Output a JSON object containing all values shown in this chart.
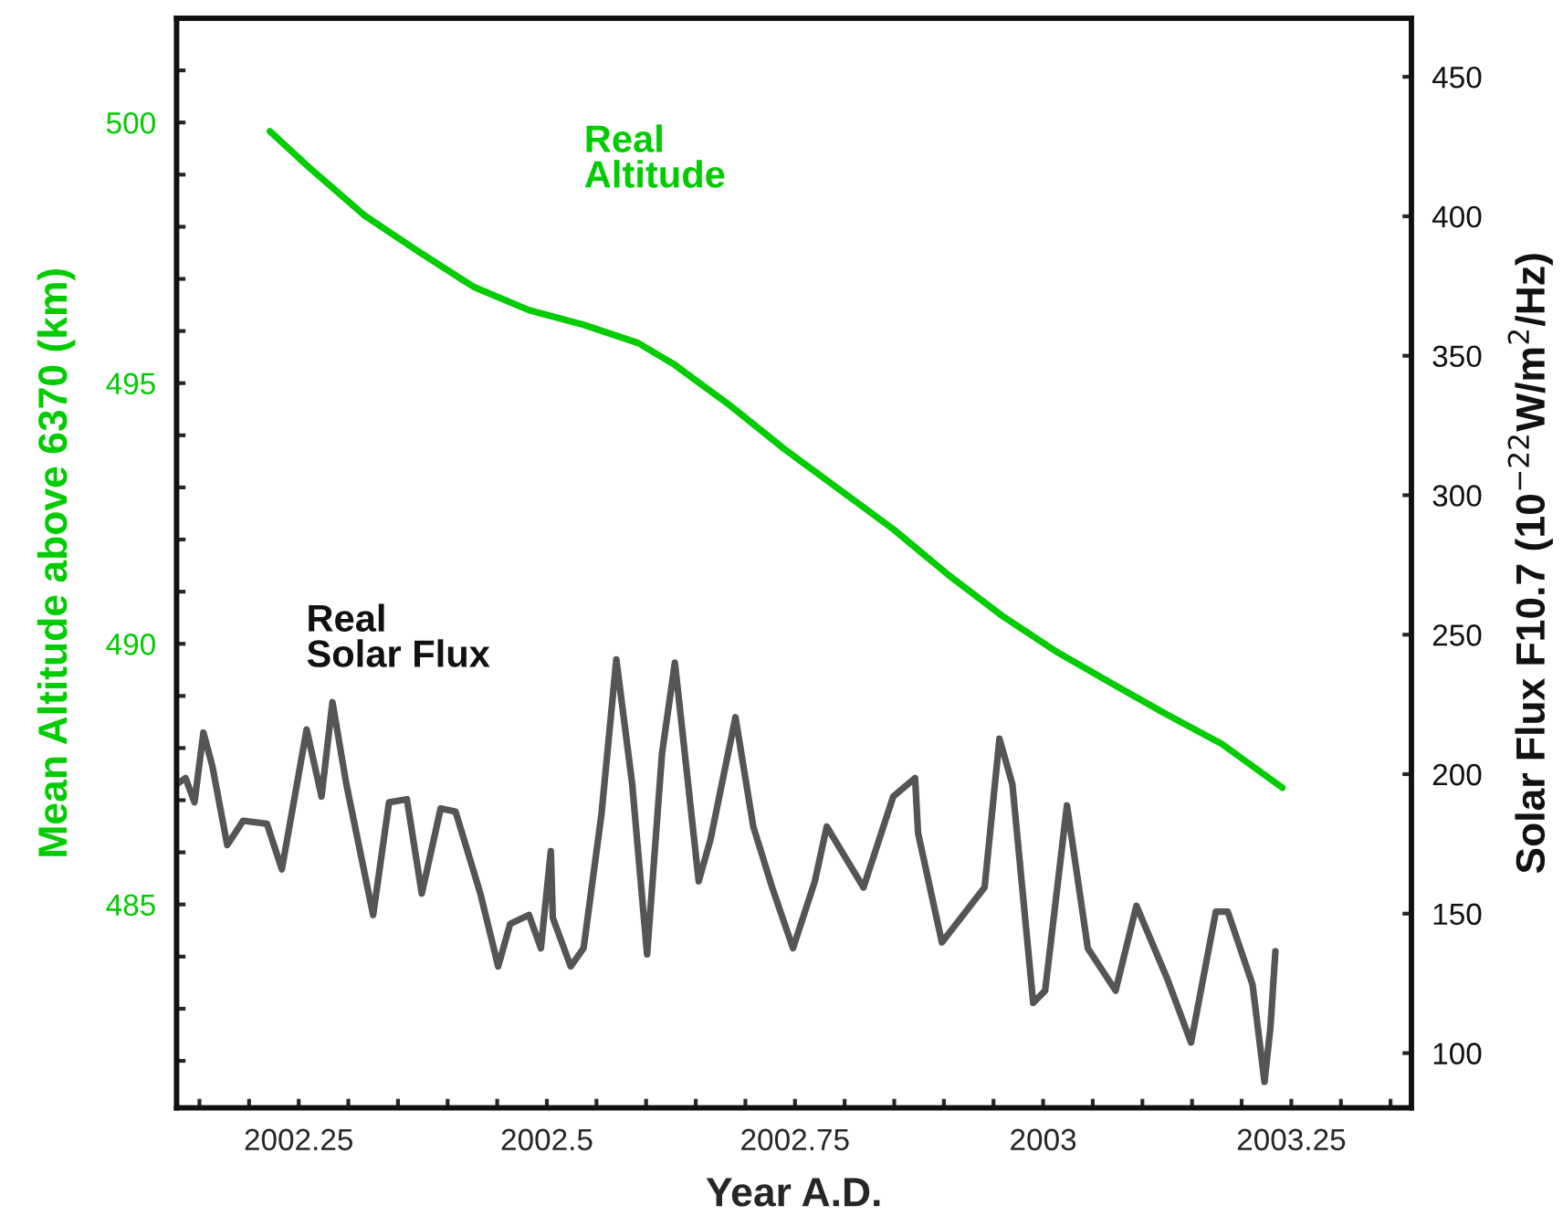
{
  "chart_data": {
    "type": "line",
    "xlabel": "Year A.D.",
    "ylabel": "Mean Altitude above 6370 (km)",
    "y2label": "Solar Flux F10.7 (10$^{−22}$W/m$^{2}$/Hz)",
    "xlim": [
      2002.127,
      2003.371
    ],
    "xticks": [
      {
        "value": 2002.15,
        "label": null
      },
      {
        "value": 2002.2,
        "label": null
      },
      2002.25,
      {
        "value": 2002.3,
        "label": null
      },
      {
        "value": 2002.35,
        "label": null
      },
      {
        "value": 2002.4,
        "label": null
      },
      {
        "value": 2002.45,
        "label": null
      },
      2002.5,
      {
        "value": 2002.55,
        "label": null
      },
      {
        "value": 2002.6,
        "label": null
      },
      {
        "value": 2002.65,
        "label": null
      },
      {
        "value": 2002.7,
        "label": null
      },
      2002.75,
      {
        "value": 2002.8,
        "label": null
      },
      {
        "value": 2002.85,
        "label": null
      },
      {
        "value": 2002.9,
        "label": null
      },
      {
        "value": 2002.95,
        "label": null
      },
      2003,
      {
        "value": 2003.05,
        "label": null
      },
      {
        "value": 2003.1,
        "label": null
      },
      {
        "value": 2003.15,
        "label": null
      },
      {
        "value": 2003.2,
        "label": null
      },
      2003.25,
      {
        "value": 2003.3,
        "label": null
      },
      {
        "value": 2003.35,
        "label": null
      }
    ],
    "ylim": [
      481.1,
      502.0
    ],
    "yticks": [
      {
        "value": 482,
        "label": null
      },
      {
        "value": 483,
        "label": null
      },
      {
        "value": 484,
        "label": null
      },
      485,
      {
        "value": 486,
        "label": null
      },
      {
        "value": 487,
        "label": null
      },
      {
        "value": 488,
        "label": null
      },
      {
        "value": 489,
        "label": null
      },
      490,
      {
        "value": 491,
        "label": null
      },
      {
        "value": 492,
        "label": null
      },
      {
        "value": 493,
        "label": null
      },
      {
        "value": 494,
        "label": null
      },
      495,
      {
        "value": 496,
        "label": null
      },
      {
        "value": 497,
        "label": null
      },
      {
        "value": 498,
        "label": null
      },
      {
        "value": 499,
        "label": null
      },
      500,
      {
        "value": 501,
        "label": null
      }
    ],
    "y2lim": [
      80.4,
      471
    ],
    "y2ticks": [
      100,
      150,
      200,
      250,
      300,
      350,
      400,
      450
    ],
    "grid": false,
    "legend": false,
    "marker": "none",
    "line_style": "solid",
    "series": [
      {
        "name": "Real\nAltitude",
        "color": "#00cc00",
        "x": [
          2002.221,
          2002.261,
          2002.316,
          2002.371,
          2002.426,
          2002.482,
          2002.537,
          2002.592,
          2002.629,
          2002.684,
          2002.739,
          2002.794,
          2002.849,
          2002.904,
          2002.96,
          2003.015,
          2003.07,
          2003.125,
          2003.18,
          2003.241
        ],
        "values": [
          499.83,
          499.13,
          498.22,
          497.52,
          496.85,
          496.4,
          496.12,
          495.77,
          495.35,
          494.58,
          493.74,
          492.97,
          492.2,
          491.33,
          490.52,
          489.83,
          489.23,
          488.64,
          488.08,
          487.24
        ]
      },
      {
        "name": "Real\nSolar Flux",
        "color": "#555555",
        "axis": "y2",
        "x": [
          2002.127,
          2002.136,
          2002.145,
          2002.154,
          2002.163,
          2002.178,
          2002.194,
          2002.218,
          2002.233,
          2002.258,
          2002.273,
          2002.284,
          2002.298,
          2002.325,
          2002.341,
          2002.359,
          2002.374,
          2002.393,
          2002.408,
          2002.433,
          2002.451,
          2002.463,
          2002.482,
          2002.494,
          2002.504,
          2002.506,
          2002.524,
          2002.537,
          2002.555,
          2002.57,
          2002.586,
          2002.601,
          2002.616,
          2002.629,
          2002.653,
          2002.665,
          2002.69,
          2002.708,
          2002.727,
          2002.748,
          2002.77,
          2002.782,
          2002.819,
          2002.849,
          2002.871,
          2002.874,
          2002.898,
          2002.941,
          2002.956,
          2002.969,
          2002.99,
          2003.002,
          2003.024,
          2003.045,
          2003.073,
          2003.094,
          2003.125,
          2003.149,
          2003.174,
          2003.186,
          2003.211,
          2003.223,
          2003.229,
          2003.234
        ],
        "values": [
          196.4,
          198.6,
          189.9,
          214.9,
          202.9,
          174.6,
          183.3,
          182.2,
          165.9,
          216.0,
          192.0,
          225.8,
          196.4,
          149.5,
          189.9,
          191.0,
          157.2,
          187.7,
          186.6,
          157.2,
          131.1,
          146.3,
          149.5,
          137.6,
          172.4,
          148.5,
          131.1,
          137.6,
          185.5,
          241.1,
          196.4,
          135.4,
          207.3,
          240.0,
          161.6,
          176.8,
          220.4,
          181.2,
          159.4,
          137.6,
          161.6,
          181.2,
          159.4,
          192.0,
          198.6,
          178.9,
          139.7,
          159.4,
          212.7,
          196.4,
          118.0,
          122.4,
          188.8,
          137.6,
          122.4,
          152.8,
          126.7,
          103.8,
          150.7,
          150.7,
          124.5,
          89.7,
          109.3,
          136.5
        ]
      }
    ]
  }
}
